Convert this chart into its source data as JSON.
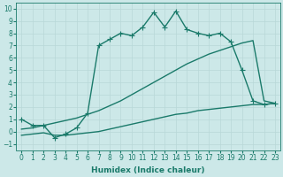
{
  "xlabel": "Humidex (Indice chaleur)",
  "ylabel": "",
  "bg_color": "#cce8e8",
  "grid_color": "#b8d8d8",
  "line_color": "#1a7a6a",
  "xlim": [
    -0.5,
    23.5
  ],
  "ylim": [
    -1.5,
    10.5
  ],
  "xticks": [
    0,
    1,
    2,
    3,
    4,
    5,
    6,
    7,
    8,
    9,
    10,
    11,
    12,
    13,
    14,
    15,
    16,
    17,
    18,
    19,
    20,
    21,
    22,
    23
  ],
  "yticks": [
    -1,
    0,
    1,
    2,
    3,
    4,
    5,
    6,
    7,
    8,
    9,
    10
  ],
  "line1_x": [
    0,
    1,
    2,
    3,
    4,
    5,
    6,
    7,
    8,
    9,
    10,
    11,
    12,
    13,
    14,
    15,
    16,
    17,
    18,
    19,
    20,
    21,
    22,
    23
  ],
  "line1_y": [
    1,
    0.5,
    0.5,
    -0.5,
    -0.2,
    0.3,
    1.5,
    7.0,
    7.5,
    8.0,
    7.8,
    8.5,
    9.7,
    8.5,
    9.8,
    8.3,
    8.0,
    7.8,
    8.0,
    7.3,
    5.0,
    2.5,
    2.2,
    2.3
  ],
  "line2_x": [
    0,
    1,
    2,
    3,
    4,
    5,
    6,
    7,
    8,
    9,
    10,
    11,
    12,
    13,
    14,
    15,
    16,
    17,
    18,
    19,
    20,
    21,
    22,
    23
  ],
  "line2_y": [
    0.2,
    0.3,
    0.5,
    0.7,
    0.9,
    1.1,
    1.4,
    1.7,
    2.1,
    2.5,
    3.0,
    3.5,
    4.0,
    4.5,
    5.0,
    5.5,
    5.9,
    6.3,
    6.6,
    6.9,
    7.2,
    7.4,
    2.5,
    2.3
  ],
  "line3_x": [
    0,
    1,
    2,
    3,
    4,
    5,
    6,
    7,
    8,
    9,
    10,
    11,
    12,
    13,
    14,
    15,
    16,
    17,
    18,
    19,
    20,
    21,
    22,
    23
  ],
  "line3_y": [
    -0.3,
    -0.2,
    -0.1,
    -0.3,
    -0.3,
    -0.2,
    -0.1,
    0.0,
    0.2,
    0.4,
    0.6,
    0.8,
    1.0,
    1.2,
    1.4,
    1.5,
    1.7,
    1.8,
    1.9,
    2.0,
    2.1,
    2.2,
    2.2,
    2.3
  ],
  "marker": "+",
  "markersize": 4,
  "linewidth": 1.0,
  "tick_fontsize": 5.5,
  "xlabel_fontsize": 6.5
}
